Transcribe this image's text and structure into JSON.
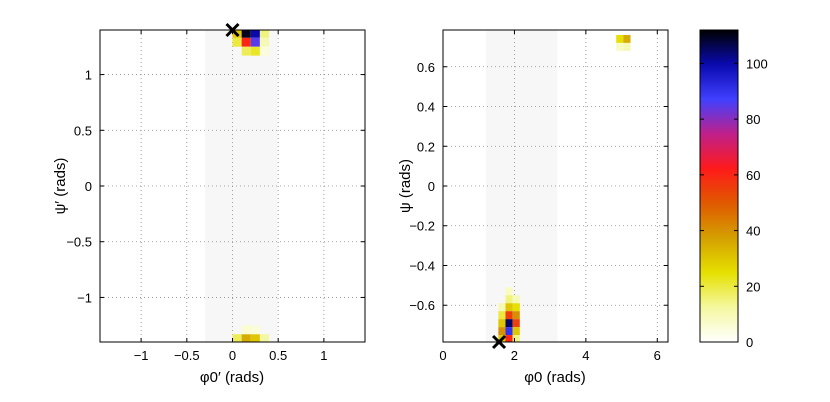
{
  "chart_data": [
    {
      "type": "heatmap",
      "xlabel": "φ0′ (rads)",
      "ylabel": "ψ′ (rads)",
      "xlim": [
        -1.45,
        1.45
      ],
      "ylim": [
        -1.4,
        1.4
      ],
      "xticks": [
        -1,
        -0.5,
        0,
        0.5,
        1
      ],
      "xtick_labels": [
        "−1",
        "−0.5",
        "0",
        "0.5",
        "1"
      ],
      "yticks": [
        -1,
        -0.5,
        0,
        0.5,
        1
      ],
      "ytick_labels": [
        "−1",
        "−0.5",
        "0",
        "0.5",
        "1"
      ],
      "grid": true,
      "cells": [
        {
          "x": 0.05,
          "y": 1.37,
          "v": 30
        },
        {
          "x": 0.15,
          "y": 1.37,
          "v": 110
        },
        {
          "x": 0.25,
          "y": 1.37,
          "v": 100
        },
        {
          "x": 0.35,
          "y": 1.37,
          "v": 15
        },
        {
          "x": 0.05,
          "y": 1.29,
          "v": 20
        },
        {
          "x": 0.15,
          "y": 1.29,
          "v": 60
        },
        {
          "x": 0.25,
          "y": 1.29,
          "v": 85
        },
        {
          "x": 0.35,
          "y": 1.29,
          "v": 10
        },
        {
          "x": 0.15,
          "y": 1.21,
          "v": 18
        },
        {
          "x": 0.25,
          "y": 1.21,
          "v": 22
        },
        {
          "x": 0.35,
          "y": 1.21,
          "v": 5
        },
        {
          "x": 0.05,
          "y": -1.37,
          "v": 18
        },
        {
          "x": 0.15,
          "y": -1.37,
          "v": 35
        },
        {
          "x": 0.25,
          "y": -1.37,
          "v": 30
        },
        {
          "x": 0.35,
          "y": -1.37,
          "v": 12
        },
        {
          "x": 0.15,
          "y": -1.29,
          "v": 6
        },
        {
          "x": 0.25,
          "y": -1.29,
          "v": 5
        }
      ],
      "background_band": {
        "x0": -0.3,
        "x1": 0.5
      },
      "marker": {
        "x": 0,
        "y": 1.4,
        "symbol": "x"
      }
    },
    {
      "type": "heatmap",
      "xlabel": "φ0 (rads)",
      "ylabel": "ψ (rads)",
      "xlim": [
        0,
        6.3
      ],
      "ylim": [
        -0.785,
        0.785
      ],
      "xticks": [
        0,
        2,
        4,
        6
      ],
      "xtick_labels": [
        "0",
        "2",
        "4",
        "6"
      ],
      "yticks": [
        -0.6,
        -0.4,
        -0.2,
        0,
        0.2,
        0.4,
        0.6
      ],
      "ytick_labels": [
        "−0.6",
        "−0.4",
        "−0.2",
        "0",
        "0.2",
        "0.4",
        "0.6"
      ],
      "grid": true,
      "cells": [
        {
          "x": 4.95,
          "y": 0.74,
          "v": 25
        },
        {
          "x": 5.15,
          "y": 0.74,
          "v": 35
        },
        {
          "x": 4.95,
          "y": 0.7,
          "v": 8
        },
        {
          "x": 5.15,
          "y": 0.7,
          "v": 10
        },
        {
          "x": 1.85,
          "y": -0.53,
          "v": 8
        },
        {
          "x": 1.85,
          "y": -0.57,
          "v": 15
        },
        {
          "x": 2.05,
          "y": -0.57,
          "v": 10
        },
        {
          "x": 1.65,
          "y": -0.61,
          "v": 10
        },
        {
          "x": 1.85,
          "y": -0.61,
          "v": 30
        },
        {
          "x": 2.05,
          "y": -0.61,
          "v": 25
        },
        {
          "x": 1.65,
          "y": -0.65,
          "v": 20
        },
        {
          "x": 1.85,
          "y": -0.65,
          "v": 55
        },
        {
          "x": 2.05,
          "y": -0.65,
          "v": 40
        },
        {
          "x": 1.65,
          "y": -0.69,
          "v": 30
        },
        {
          "x": 1.85,
          "y": -0.69,
          "v": 105
        },
        {
          "x": 2.05,
          "y": -0.69,
          "v": 55
        },
        {
          "x": 1.65,
          "y": -0.73,
          "v": 40
        },
        {
          "x": 1.85,
          "y": -0.73,
          "v": 90
        },
        {
          "x": 2.05,
          "y": -0.73,
          "v": 30
        },
        {
          "x": 1.65,
          "y": -0.77,
          "v": 30
        },
        {
          "x": 1.85,
          "y": -0.77,
          "v": 60
        },
        {
          "x": 2.05,
          "y": -0.77,
          "v": 15
        }
      ],
      "background_band": {
        "x0": 1.2,
        "x1": 3.2
      },
      "marker": {
        "x": 1.57,
        "y": -0.785,
        "symbol": "x"
      }
    }
  ],
  "colorbar": {
    "min": 0,
    "max": 112,
    "ticks": [
      0,
      20,
      40,
      60,
      80,
      100
    ],
    "tick_labels": [
      "0",
      "20",
      "40",
      "60",
      "80",
      "100"
    ],
    "colormap": [
      "#ffffff",
      "#f4f8a0",
      "#e6e000",
      "#d4a000",
      "#e05a00",
      "#ff1a1a",
      "#c0208a",
      "#4040ff",
      "#0a0ab0",
      "#000000"
    ]
  }
}
